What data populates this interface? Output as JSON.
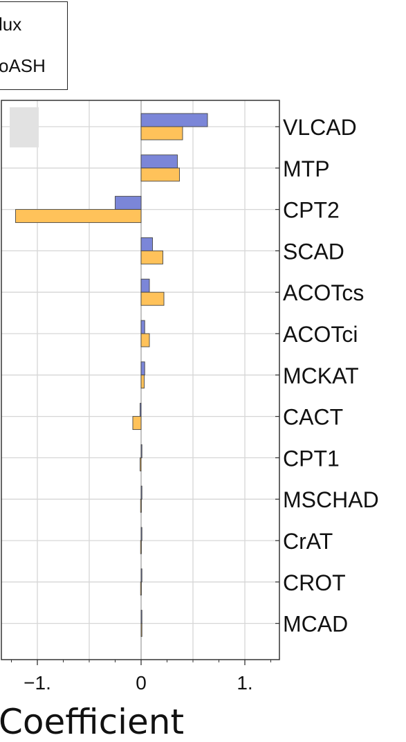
{
  "legend": {
    "entries": [
      {
        "label": "lux",
        "color": "#7b86d8"
      },
      {
        "label": "oASH",
        "color": "#ffc25a"
      }
    ]
  },
  "chart_data": {
    "type": "bar",
    "orientation": "horizontal",
    "categories": [
      "VLCAD",
      "MTP",
      "CPT2",
      "SCAD",
      "ACOTcs",
      "ACOTci",
      "MCKAT",
      "CACT",
      "CPT1",
      "MSCHAD",
      "CrAT",
      "CROT",
      "MCAD"
    ],
    "series": [
      {
        "name": "lux",
        "color": "#7b86d8",
        "values": [
          0.64,
          0.35,
          -0.25,
          0.11,
          0.08,
          0.035,
          0.035,
          -0.01,
          0.0,
          0.0,
          0.0,
          0.0,
          0.0
        ]
      },
      {
        "name": "oASH",
        "color": "#ffc25a",
        "values": [
          0.4,
          0.37,
          -1.21,
          0.21,
          0.22,
          0.08,
          0.03,
          -0.08,
          -0.01,
          -0.005,
          -0.005,
          -0.005,
          0.0
        ]
      }
    ],
    "xlim": [
      -1.32,
      1.32
    ],
    "xticks": [
      -1,
      0,
      1
    ],
    "xtick_labels": [
      "−1.",
      "0",
      "1."
    ],
    "xlabel": "Coefficient",
    "grid": true
  }
}
